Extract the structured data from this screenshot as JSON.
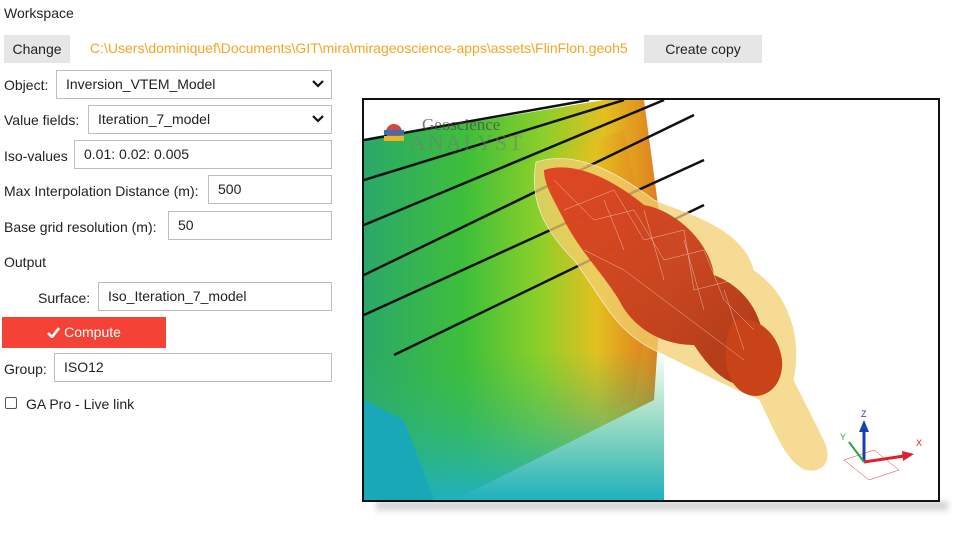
{
  "workspace": {
    "heading": "Workspace",
    "change_label": "Change",
    "path": "C:\\Users\\dominiquef\\Documents\\GIT\\mira\\mirageoscience-apps\\assets\\FlinFlon.geoh5",
    "copy_label": "Create copy",
    "path_color": "#f5a623"
  },
  "form": {
    "object_label": "Object:",
    "object_value": "Inversion_VTEM_Model",
    "value_fields_label": "Value fields:",
    "value_fields_value": "Iteration_7_model",
    "iso_label": "Iso-values",
    "iso_value": "0.01: 0.02: 0.005",
    "max_interp_label": "Max Interpolation Distance (m):",
    "max_interp_value": "500",
    "base_grid_label": "Base grid resolution (m):",
    "base_grid_value": "50",
    "output_label": "Output",
    "surface_label": "Surface:",
    "surface_value": "Iso_Iteration_7_model",
    "compute_label": "Compute",
    "compute_color": "#f44336",
    "group_label": "Group:",
    "group_value": "ISO12",
    "live_link_label": "GA Pro - Live link"
  },
  "viewer": {
    "logo_top": "Geoscience",
    "logo_bottom": "ANALYST",
    "axis_x": "X",
    "axis_y": "Y",
    "axis_z": "Z"
  }
}
